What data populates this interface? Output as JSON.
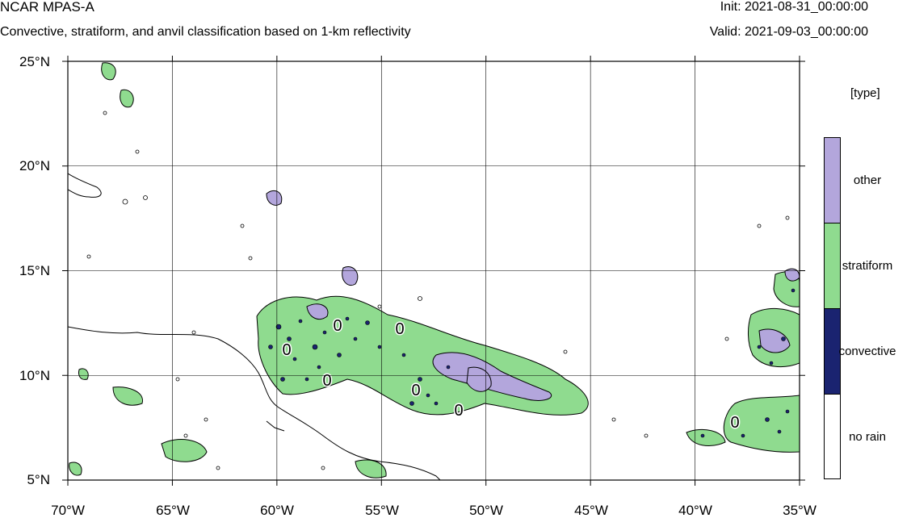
{
  "header": {
    "title": "NCAR MPAS-A",
    "subtitle": "Convective, stratiform, and anvil classification based on 1-km reflectivity",
    "init": "Init: 2021-08-31_00:00:00",
    "valid": "Valid: 2021-09-03_00:00:00"
  },
  "map": {
    "lat_labels": [
      "25°N",
      "20°N",
      "15°N",
      "10°N",
      "5°N"
    ],
    "lon_labels": [
      "70°W",
      "65°W",
      "60°W",
      "55°W",
      "50°W",
      "45°W",
      "40°W",
      "35°W"
    ],
    "lat_values": [
      25,
      20,
      15,
      10,
      5
    ],
    "lon_values": [
      -70,
      -65,
      -60,
      -55,
      -50,
      -45,
      -40,
      -35
    ],
    "extent": {
      "lon": [
        -70,
        -35
      ],
      "lat": [
        5,
        25
      ]
    },
    "grid": true,
    "contour_labels": [
      "0",
      "0",
      "0",
      "0",
      "0",
      "0",
      "0"
    ],
    "colors": {
      "other": "#b3a6dc",
      "stratiform": "#8fdb8f",
      "convective": "#1a2370",
      "no_rain": "#ffffff"
    }
  },
  "legend": {
    "title": "[type]",
    "items": [
      {
        "label": "other",
        "color": "#b3a6dc"
      },
      {
        "label": "stratiform",
        "color": "#8fdb8f"
      },
      {
        "label": "convective",
        "color": "#1a2370"
      },
      {
        "label": "no rain",
        "color": "#ffffff"
      }
    ]
  }
}
